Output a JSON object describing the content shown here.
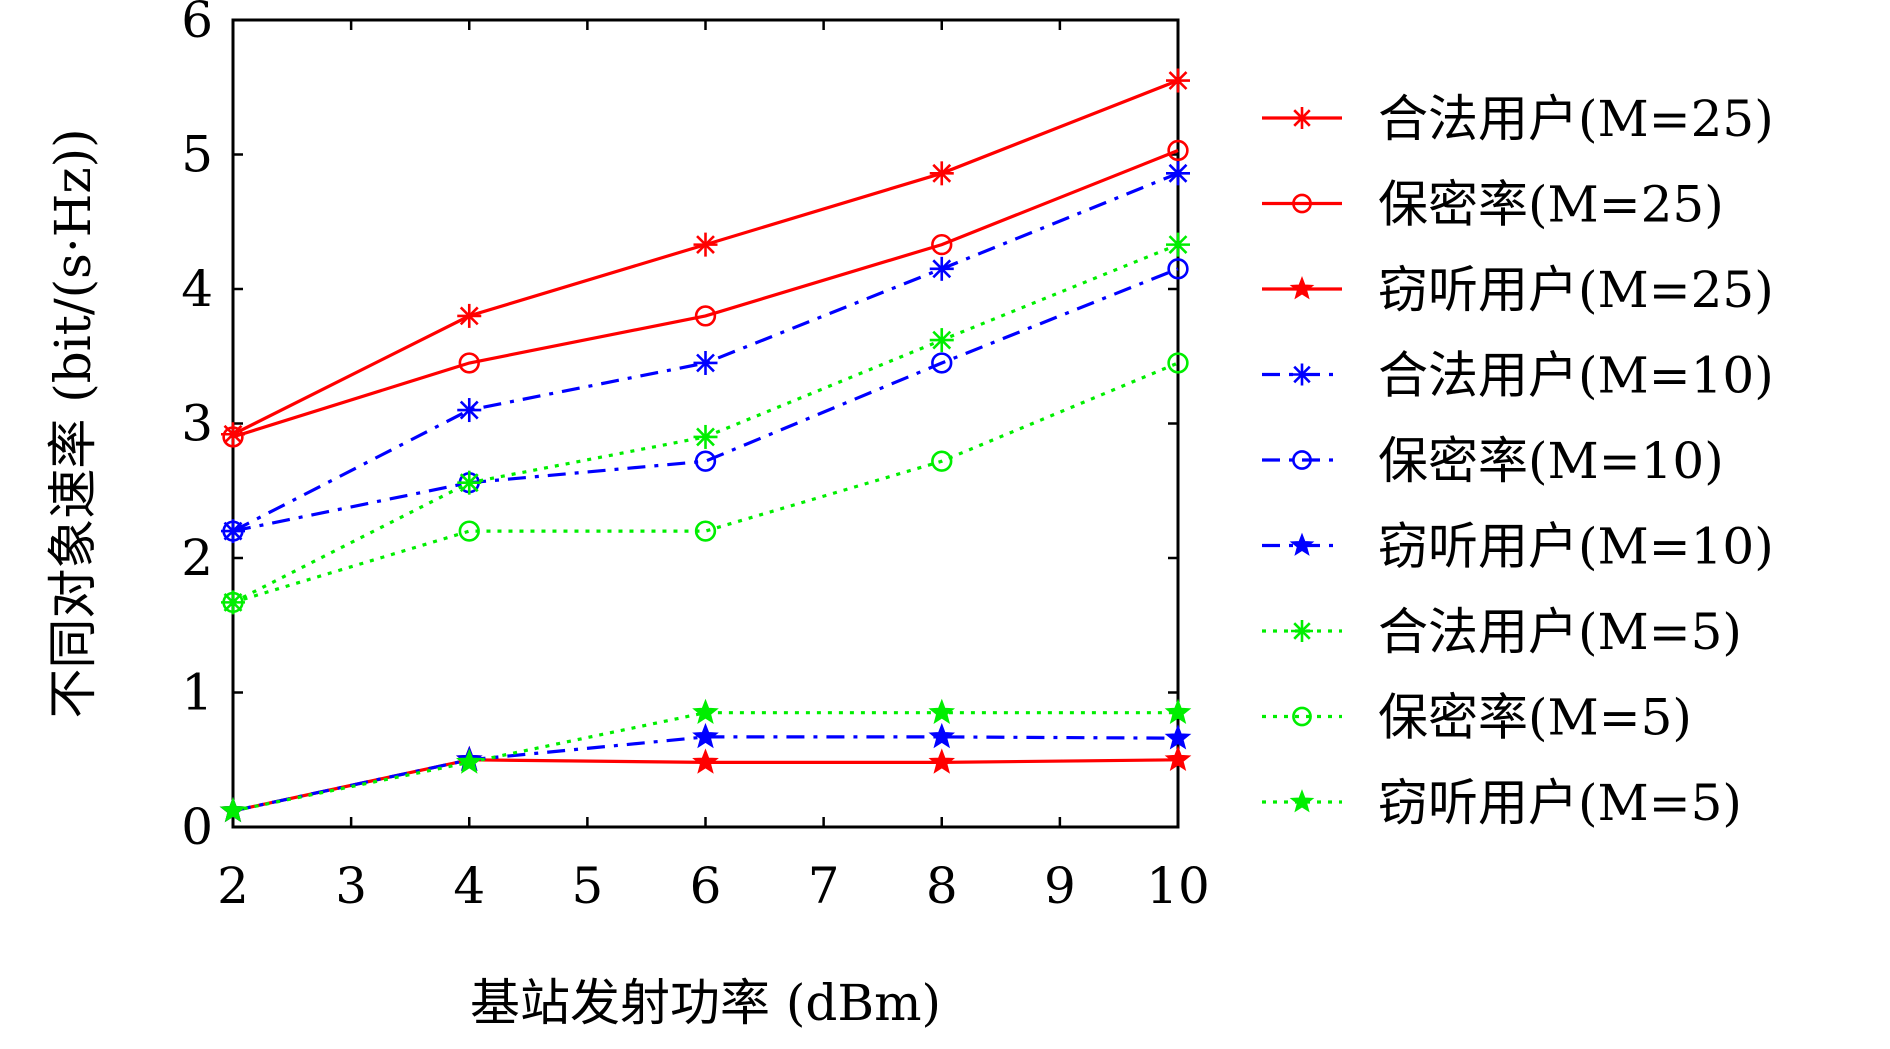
{
  "chart_data": {
    "type": "line",
    "title": "",
    "xlabel": "基站发射功率 (dBm)",
    "ylabel": "不同对象速率 (bit/(s·Hz))",
    "xlim": [
      2,
      10
    ],
    "ylim": [
      0,
      6
    ],
    "x_ticks": [
      "2",
      "3",
      "4",
      "5",
      "6",
      "7",
      "8",
      "9",
      "10"
    ],
    "y_ticks": [
      "0",
      "1",
      "2",
      "3",
      "4",
      "5",
      "6"
    ],
    "grid": false,
    "legend_position": "right",
    "x": [
      2,
      4,
      6,
      8,
      10
    ],
    "series": [
      {
        "name": "合法用户(M=25)",
        "values": [
          2.92,
          3.8,
          4.33,
          4.86,
          5.55
        ],
        "color": "#ff0000",
        "dash": "solid",
        "marker": "asterisk"
      },
      {
        "name": "保密率(M=25)",
        "values": [
          2.9,
          3.45,
          3.8,
          4.33,
          5.03
        ],
        "color": "#ff0000",
        "dash": "solid",
        "marker": "circle"
      },
      {
        "name": "窃听用户(M=25)",
        "values": [
          0.12,
          0.5,
          0.48,
          0.48,
          0.5
        ],
        "color": "#ff0000",
        "dash": "solid",
        "marker": "star"
      },
      {
        "name": "合法用户(M=10)",
        "values": [
          2.2,
          3.1,
          3.45,
          4.15,
          4.86
        ],
        "color": "#0000ff",
        "dash": "dashdot",
        "marker": "asterisk"
      },
      {
        "name": "保密率(M=10)",
        "values": [
          2.2,
          2.56,
          2.72,
          3.45,
          4.15
        ],
        "color": "#0000ff",
        "dash": "dashdot",
        "marker": "circle"
      },
      {
        "name": "窃听用户(M=10)",
        "values": [
          0.12,
          0.5,
          0.67,
          0.67,
          0.66
        ],
        "color": "#0000ff",
        "dash": "dashdot",
        "marker": "star"
      },
      {
        "name": "合法用户(M=5)",
        "values": [
          1.67,
          2.56,
          2.9,
          3.62,
          4.33
        ],
        "color": "#00ee00",
        "dash": "dotted",
        "marker": "asterisk"
      },
      {
        "name": "保密率(M=5)",
        "values": [
          1.67,
          2.2,
          2.2,
          2.72,
          3.45
        ],
        "color": "#00ee00",
        "dash": "dotted",
        "marker": "circle"
      },
      {
        "name": "窃听用户(M=5)",
        "values": [
          0.12,
          0.48,
          0.85,
          0.85,
          0.85
        ],
        "color": "#00ee00",
        "dash": "dotted",
        "marker": "star"
      }
    ]
  }
}
